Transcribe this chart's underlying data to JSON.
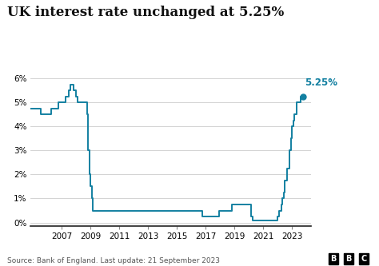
{
  "title": "UK interest rate unchanged at 5.25%",
  "source_text": "Source: Bank of England. Last update: 21 September 2023",
  "line_color": "#1380A1",
  "label_color": "#1380A1",
  "annotation": "5.25%",
  "bg_color": "#ffffff",
  "ylim": [
    -0.15,
    6.5
  ],
  "yticks": [
    0,
    1,
    2,
    3,
    4,
    5,
    6
  ],
  "data": [
    [
      2004.25,
      4.75
    ],
    [
      2004.75,
      4.75
    ],
    [
      2005.0,
      4.75
    ],
    [
      2005.25,
      4.75
    ],
    [
      2005.5,
      4.5
    ],
    [
      2005.917,
      4.5
    ],
    [
      2006.0,
      4.5
    ],
    [
      2006.25,
      4.75
    ],
    [
      2006.5,
      4.75
    ],
    [
      2006.75,
      5.0
    ],
    [
      2007.0,
      5.0
    ],
    [
      2007.25,
      5.25
    ],
    [
      2007.5,
      5.5
    ],
    [
      2007.583,
      5.75
    ],
    [
      2007.75,
      5.75
    ],
    [
      2007.833,
      5.5
    ],
    [
      2007.917,
      5.5
    ],
    [
      2008.0,
      5.25
    ],
    [
      2008.083,
      5.0
    ],
    [
      2008.25,
      5.0
    ],
    [
      2008.583,
      5.0
    ],
    [
      2008.75,
      4.5
    ],
    [
      2008.833,
      3.0
    ],
    [
      2008.917,
      2.0
    ],
    [
      2009.0,
      1.5
    ],
    [
      2009.083,
      1.0
    ],
    [
      2009.167,
      0.5
    ],
    [
      2016.583,
      0.5
    ],
    [
      2016.75,
      0.25
    ],
    [
      2017.75,
      0.25
    ],
    [
      2017.917,
      0.5
    ],
    [
      2018.75,
      0.5
    ],
    [
      2018.833,
      0.75
    ],
    [
      2019.583,
      0.75
    ],
    [
      2019.667,
      0.75
    ],
    [
      2020.167,
      0.25
    ],
    [
      2020.25,
      0.1
    ],
    [
      2021.917,
      0.1
    ],
    [
      2021.958,
      0.25
    ],
    [
      2022.083,
      0.5
    ],
    [
      2022.25,
      0.75
    ],
    [
      2022.333,
      1.0
    ],
    [
      2022.417,
      1.25
    ],
    [
      2022.5,
      1.75
    ],
    [
      2022.667,
      2.25
    ],
    [
      2022.75,
      2.25
    ],
    [
      2022.833,
      3.0
    ],
    [
      2022.917,
      3.5
    ],
    [
      2023.0,
      4.0
    ],
    [
      2023.083,
      4.25
    ],
    [
      2023.167,
      4.5
    ],
    [
      2023.333,
      5.0
    ],
    [
      2023.583,
      5.25
    ],
    [
      2023.75,
      5.25
    ]
  ],
  "xticks": [
    2007,
    2009,
    2011,
    2013,
    2015,
    2017,
    2019,
    2021,
    2023
  ],
  "xlim": [
    2004.8,
    2024.3
  ],
  "dot_x": 2023.75,
  "dot_y": 5.25
}
